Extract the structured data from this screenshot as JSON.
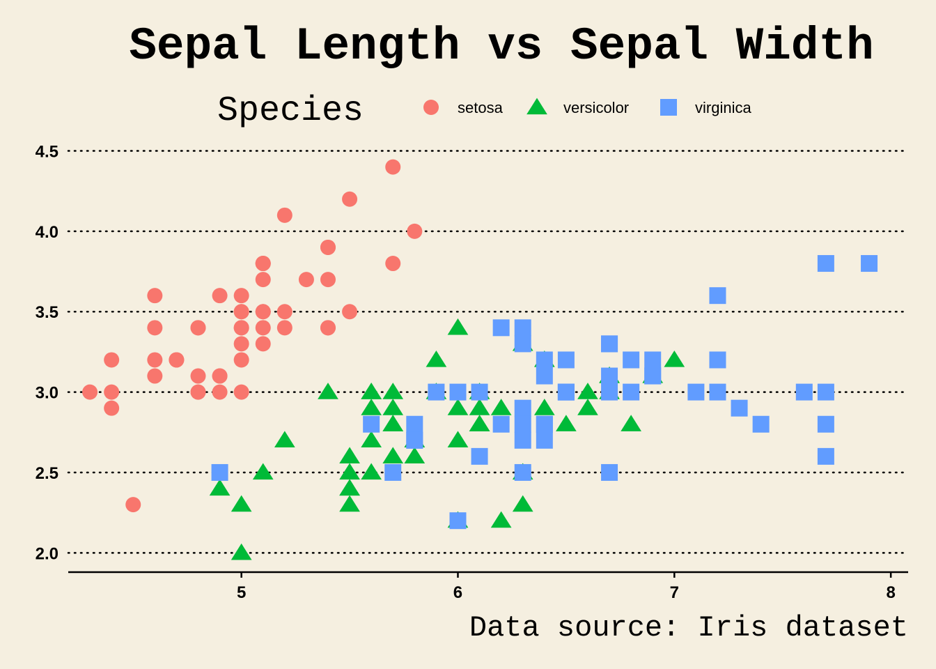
{
  "chart_data": {
    "type": "scatter",
    "title": "Sepal Length vs Sepal Width",
    "caption": "Data source: Iris dataset",
    "xlabel": "",
    "ylabel": "",
    "xlim": [
      4.2,
      8.08
    ],
    "ylim": [
      1.88,
      4.55
    ],
    "xticks": [
      5,
      6,
      7,
      8
    ],
    "xtick_labels": [
      "5",
      "6",
      "7",
      "8"
    ],
    "yticks": [
      2.0,
      2.5,
      3.0,
      3.5,
      4.0,
      4.5
    ],
    "ytick_labels": [
      "2.0",
      "2.5",
      "3.0",
      "3.5",
      "4.0",
      "4.5"
    ],
    "grid": "horizontal-dotted",
    "legend": {
      "title": "Species",
      "position": "top",
      "entries": [
        {
          "label": "setosa",
          "shape": "circle",
          "color": "#F8766D"
        },
        {
          "label": "versicolor",
          "shape": "triangle",
          "color": "#00BA38"
        },
        {
          "label": "virginica",
          "shape": "square",
          "color": "#619CFF"
        }
      ]
    },
    "series": [
      {
        "name": "setosa",
        "shape": "circle",
        "color": "#F8766D",
        "x": [
          5.1,
          4.9,
          4.7,
          4.6,
          5.0,
          5.4,
          4.6,
          5.0,
          4.4,
          4.9,
          5.4,
          4.8,
          4.8,
          4.3,
          5.8,
          5.7,
          5.4,
          5.1,
          5.7,
          5.1,
          5.4,
          5.1,
          4.6,
          5.1,
          4.8,
          5.0,
          5.0,
          5.2,
          5.2,
          4.7,
          4.8,
          5.4,
          5.2,
          5.5,
          4.9,
          5.0,
          5.5,
          4.9,
          4.4,
          5.1,
          5.0,
          4.5,
          4.4,
          5.0,
          5.1,
          4.8,
          5.1,
          4.6,
          5.3,
          5.0
        ],
        "y": [
          3.5,
          3.0,
          3.2,
          3.1,
          3.6,
          3.9,
          3.4,
          3.4,
          2.9,
          3.1,
          3.7,
          3.4,
          3.0,
          3.0,
          4.0,
          4.4,
          3.9,
          3.5,
          3.8,
          3.8,
          3.4,
          3.7,
          3.6,
          3.3,
          3.4,
          3.0,
          3.4,
          3.5,
          3.4,
          3.2,
          3.1,
          3.4,
          4.1,
          4.2,
          3.1,
          3.2,
          3.5,
          3.6,
          3.0,
          3.4,
          3.5,
          2.3,
          3.2,
          3.5,
          3.8,
          3.0,
          3.8,
          3.2,
          3.7,
          3.3
        ]
      },
      {
        "name": "versicolor",
        "shape": "triangle",
        "color": "#00BA38",
        "x": [
          7.0,
          6.4,
          6.9,
          5.5,
          6.5,
          5.7,
          6.3,
          4.9,
          6.6,
          5.2,
          5.0,
          5.9,
          6.0,
          6.1,
          5.6,
          6.7,
          5.6,
          5.8,
          6.2,
          5.6,
          5.9,
          6.1,
          6.3,
          6.1,
          6.4,
          6.6,
          6.8,
          6.7,
          6.0,
          5.7,
          5.5,
          5.5,
          5.8,
          6.0,
          5.4,
          6.0,
          6.7,
          6.3,
          5.6,
          5.5,
          5.5,
          6.1,
          5.8,
          5.0,
          5.6,
          5.7,
          5.7,
          6.2,
          5.1,
          5.7
        ],
        "y": [
          3.2,
          3.2,
          3.1,
          2.3,
          2.8,
          2.8,
          3.3,
          2.4,
          2.9,
          2.7,
          2.0,
          3.0,
          2.2,
          2.9,
          2.9,
          3.1,
          3.0,
          2.7,
          2.2,
          2.5,
          3.2,
          2.8,
          2.5,
          2.8,
          2.9,
          3.0,
          2.8,
          3.0,
          2.9,
          2.6,
          2.4,
          2.4,
          2.7,
          2.7,
          3.0,
          3.4,
          3.1,
          2.3,
          3.0,
          2.5,
          2.6,
          3.0,
          2.6,
          2.3,
          2.7,
          3.0,
          2.9,
          2.9,
          2.5,
          2.8
        ]
      },
      {
        "name": "virginica",
        "shape": "square",
        "color": "#619CFF",
        "x": [
          6.3,
          5.8,
          7.1,
          6.3,
          6.5,
          7.6,
          4.9,
          7.3,
          6.7,
          7.2,
          6.5,
          6.4,
          6.8,
          5.7,
          5.8,
          6.4,
          6.5,
          7.7,
          7.7,
          6.0,
          6.9,
          5.6,
          7.7,
          6.3,
          6.7,
          7.2,
          6.2,
          6.1,
          6.4,
          7.2,
          7.4,
          7.9,
          6.4,
          6.3,
          6.1,
          7.7,
          6.3,
          6.4,
          6.0,
          6.9,
          6.7,
          6.9,
          5.8,
          6.8,
          6.7,
          6.7,
          6.3,
          6.5,
          6.2,
          5.9
        ],
        "y": [
          3.3,
          2.7,
          3.0,
          2.9,
          3.0,
          3.0,
          2.5,
          2.9,
          2.5,
          3.6,
          3.2,
          2.7,
          3.0,
          2.5,
          2.8,
          3.2,
          3.0,
          3.8,
          2.6,
          2.2,
          3.2,
          2.8,
          2.8,
          2.7,
          3.3,
          3.2,
          2.8,
          3.0,
          2.8,
          3.0,
          2.8,
          3.8,
          2.8,
          2.8,
          2.6,
          3.0,
          3.4,
          3.1,
          3.0,
          3.1,
          3.1,
          3.1,
          2.7,
          3.2,
          3.3,
          3.0,
          2.5,
          3.0,
          3.4,
          3.0
        ]
      }
    ]
  }
}
